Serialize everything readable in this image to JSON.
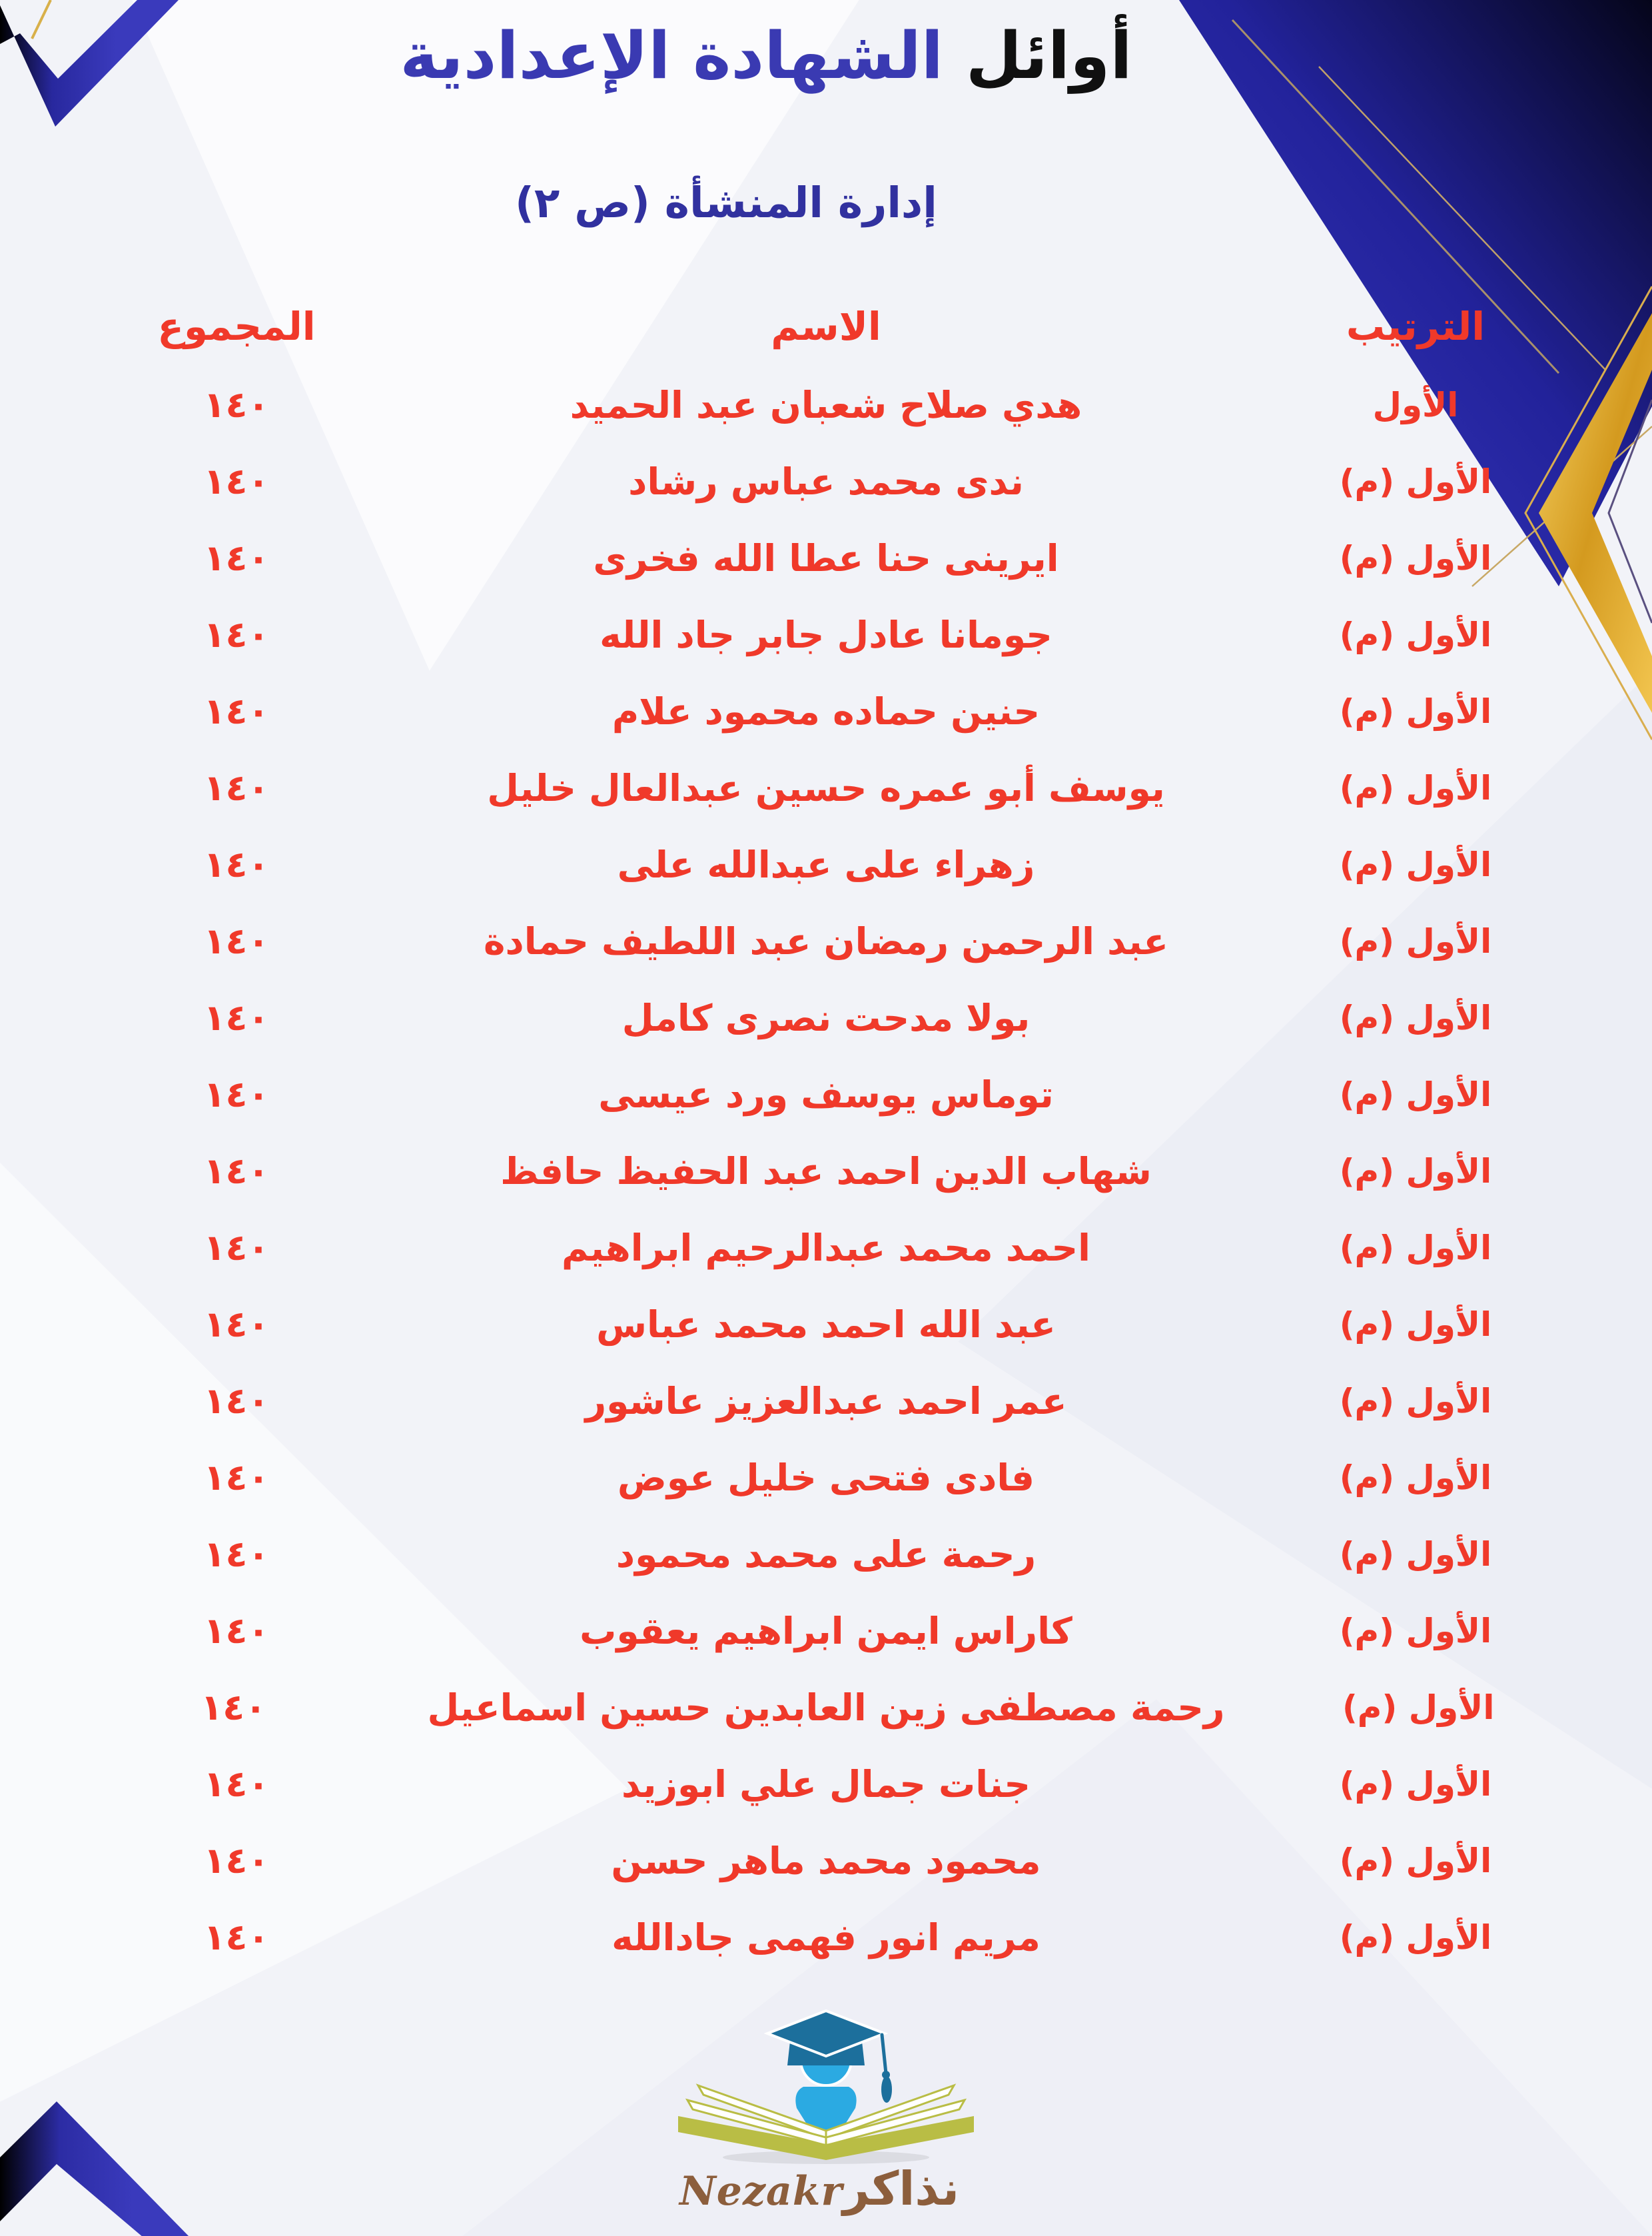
{
  "title": {
    "word_black": "أوائل",
    "word_blue": "الشهادة الإعدادية"
  },
  "subtitle": "إدارة المنشأة (ص ٢)",
  "table": {
    "headers": {
      "rank": "الترتيب",
      "name": "الاسم",
      "total": "المجموع"
    },
    "rows": [
      {
        "rank": "الأول",
        "name": "هدي صلاح شعبان عبد الحميد",
        "total": "١٤٠"
      },
      {
        "rank": "الأول (م)",
        "name": "ندى محمد عباس رشاد",
        "total": "١٤٠"
      },
      {
        "rank": "الأول (م)",
        "name": "ايرينى حنا عطا الله فخرى",
        "total": "١٤٠"
      },
      {
        "rank": "الأول (م)",
        "name": "جومانا عادل جابر جاد الله",
        "total": "١٤٠"
      },
      {
        "rank": "الأول (م)",
        "name": "حنين حماده محمود علام",
        "total": "١٤٠"
      },
      {
        "rank": "الأول (م)",
        "name": "يوسف أبو عمره حسين عبدالعال خليل",
        "total": "١٤٠"
      },
      {
        "rank": "الأول (م)",
        "name": "زهراء على عبدالله على",
        "total": "١٤٠"
      },
      {
        "rank": "الأول (م)",
        "name": "عبد الرحمن رمضان عبد اللطيف حمادة",
        "total": "١٤٠"
      },
      {
        "rank": "الأول (م)",
        "name": "بولا مدحت نصرى كامل",
        "total": "١٤٠"
      },
      {
        "rank": "الأول (م)",
        "name": "توماس يوسف ورد عيسى",
        "total": "١٤٠"
      },
      {
        "rank": "الأول (م)",
        "name": "شهاب الدين احمد عبد الحفيظ حافظ",
        "total": "١٤٠"
      },
      {
        "rank": "الأول (م)",
        "name": "احمد محمد عبدالرحيم ابراهيم",
        "total": "١٤٠"
      },
      {
        "rank": "الأول (م)",
        "name": "عبد الله احمد محمد عباس",
        "total": "١٤٠"
      },
      {
        "rank": "الأول (م)",
        "name": "عمر احمد عبدالعزيز عاشور",
        "total": "١٤٠"
      },
      {
        "rank": "الأول (م)",
        "name": "فادى فتحى خليل عوض",
        "total": "١٤٠"
      },
      {
        "rank": "الأول (م)",
        "name": "رحمة على محمد محمود",
        "total": "١٤٠"
      },
      {
        "rank": "الأول (م)",
        "name": "كاراس ايمن ابراهيم يعقوب",
        "total": "١٤٠"
      },
      {
        "rank": "الأول (م)",
        "name": "رحمة مصطفى زين العابدين حسين اسماعيل",
        "total": "١٤٠"
      },
      {
        "rank": "الأول (م)",
        "name": "جنات جمال علي ابوزيد",
        "total": "١٤٠"
      },
      {
        "rank": "الأول (م)",
        "name": "محمود محمد ماهر حسن",
        "total": "١٤٠"
      },
      {
        "rank": "الأول (م)",
        "name": "مريم انور فهمى جادالله",
        "total": "١٤٠"
      }
    ]
  },
  "logo": {
    "arabic": "نذاكر",
    "latin": "Nezakr"
  },
  "colors": {
    "accent_red": "#f0392a",
    "accent_blue": "#3a3ab2",
    "subtitle_blue": "#31319f",
    "shape_blue": "#3b3bc4",
    "shape_navy": "#07071e",
    "gold": "#e9b83c",
    "logo_brown": "#8c5e3c",
    "logo_light_blue": "#2baae2",
    "logo_teal": "#1c6f9c",
    "book_olive": "#b9bd45"
  }
}
